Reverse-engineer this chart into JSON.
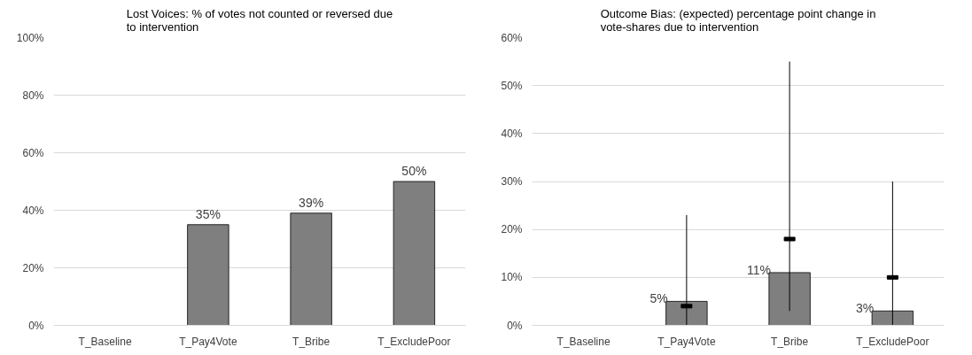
{
  "chart_data": [
    {
      "type": "bar",
      "title": "Lost Voices: % of votes not counted or reversed due to intervention",
      "categories": [
        "T_Baseline",
        "T_Pay4Vote",
        "T_Bribe",
        "T_ExcludePoor"
      ],
      "ylim": [
        0,
        100
      ],
      "yticks": [
        {
          "value": 0,
          "label": "0%"
        },
        {
          "value": 20,
          "label": "20%"
        },
        {
          "value": 40,
          "label": "40%"
        },
        {
          "value": 60,
          "label": "60%"
        },
        {
          "value": 80,
          "label": "80%"
        },
        {
          "value": 100,
          "label": "100%"
        }
      ],
      "grid": "y",
      "series": [
        {
          "type": "bar",
          "color": "#7f7f7f",
          "values": [
            null,
            35,
            39,
            50
          ],
          "value_labels": [
            null,
            "35%",
            "39%",
            "50%"
          ]
        }
      ]
    },
    {
      "type": "bar",
      "title": "Outcome Bias: (expected) percentage point change in vote-shares due to intervention",
      "categories": [
        "T_Baseline",
        "T_Pay4Vote",
        "T_Bribe",
        "T_ExcludePoor"
      ],
      "ylim": [
        0,
        60
      ],
      "yticks": [
        {
          "value": 0,
          "label": "0%"
        },
        {
          "value": 10,
          "label": "10%"
        },
        {
          "value": 20,
          "label": "20%"
        },
        {
          "value": 30,
          "label": "30%"
        },
        {
          "value": 40,
          "label": "40%"
        },
        {
          "value": 50,
          "label": "50%"
        },
        {
          "value": 60,
          "label": "60%"
        }
      ],
      "grid": "y",
      "series": [
        {
          "type": "bar",
          "color": "#7f7f7f",
          "values": [
            null,
            5,
            11,
            3
          ],
          "value_labels": [
            null,
            "5%",
            "11%",
            "3%"
          ]
        },
        {
          "type": "scatter",
          "color": "#000000",
          "values": [
            null,
            4,
            18,
            10
          ],
          "errors": [
            null,
            [
              0,
              23
            ],
            [
              3,
              55
            ],
            [
              0,
              30
            ]
          ]
        }
      ]
    }
  ]
}
